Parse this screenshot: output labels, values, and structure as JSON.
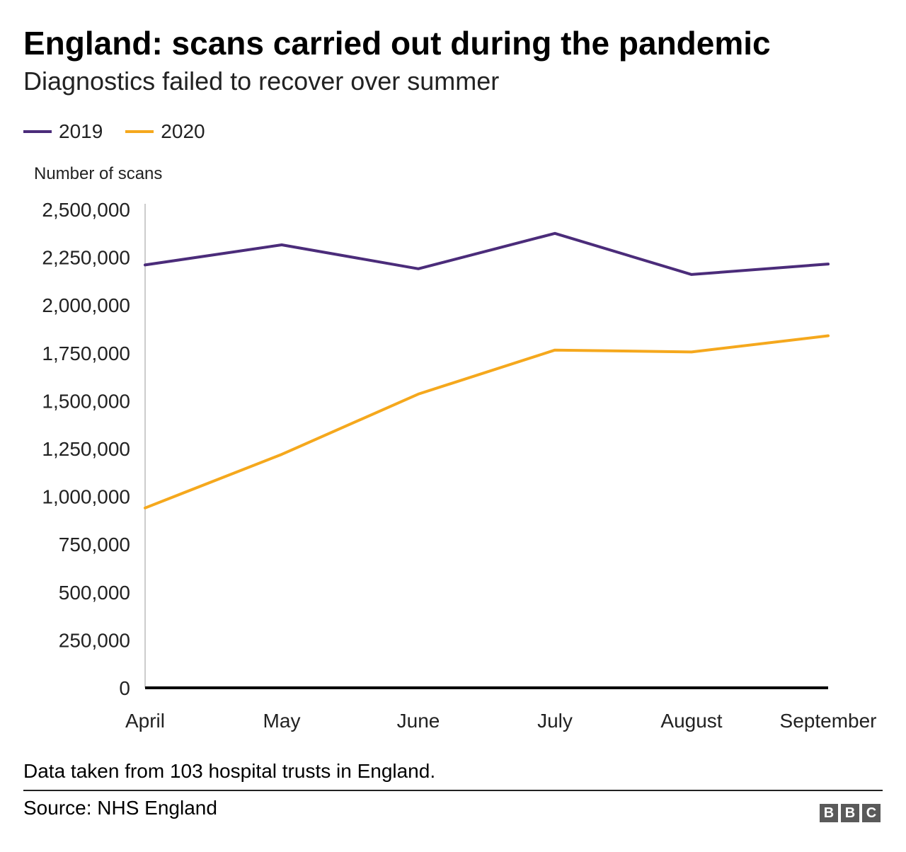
{
  "header": {
    "title": "England: scans carried out during the pandemic",
    "subtitle": "Diagnostics failed to recover over summer"
  },
  "footer": {
    "note": "Data taken from 103 hospital trusts in England.",
    "source": "Source: NHS England",
    "logo_letters": [
      "B",
      "B",
      "C"
    ]
  },
  "colors": {
    "series_2019": "#4b2c7a",
    "series_2020": "#f5a81d",
    "axis": "#000000",
    "vertical_axis": "#cccccc",
    "logo": "#5a5a5a"
  },
  "chart_data": {
    "type": "line",
    "title": "England: scans carried out during the pandemic",
    "subtitle": "Diagnostics failed to recover over summer",
    "xlabel": "",
    "ylabel": "Number of scans",
    "categories": [
      "April",
      "May",
      "June",
      "July",
      "August",
      "September"
    ],
    "series": [
      {
        "name": "2019",
        "color": "#4b2c7a",
        "values": [
          2210000,
          2315000,
          2190000,
          2375000,
          2160000,
          2215000
        ]
      },
      {
        "name": "2020",
        "color": "#f5a81d",
        "values": [
          940000,
          1220000,
          1535000,
          1765000,
          1755000,
          1840000
        ]
      }
    ],
    "ylim": [
      0,
      2500000
    ],
    "yticks": [
      0,
      250000,
      500000,
      750000,
      1000000,
      1250000,
      1500000,
      1750000,
      2000000,
      2250000,
      2500000
    ],
    "ytick_labels": [
      "0",
      "250,000",
      "500,000",
      "750,000",
      "1,000,000",
      "1,250,000",
      "1,500,000",
      "1,750,000",
      "2,000,000",
      "2,250,000",
      "2,500,000"
    ],
    "grid": false,
    "legend": "top-left"
  }
}
